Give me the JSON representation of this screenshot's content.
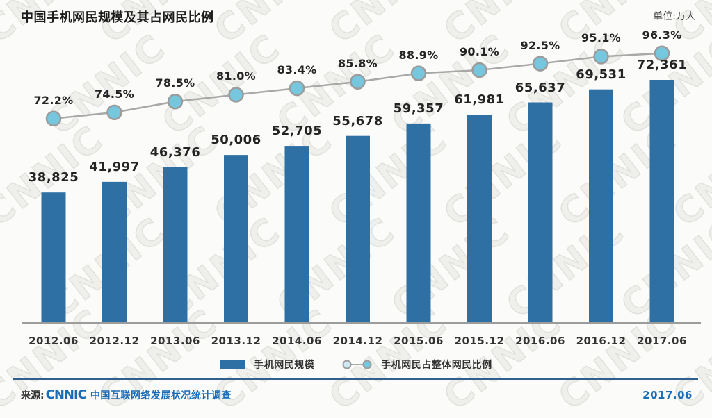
{
  "header": {
    "title": "中国手机网民规模及其占网民比例",
    "unit_label": "单位:万人"
  },
  "watermark": {
    "text": "CNNIC"
  },
  "chart_data": {
    "type": "bar",
    "subtype": "bar-line-combo",
    "title": "中国手机网民规模及其占网民比例",
    "unit": "万人",
    "categories": [
      "2012.06",
      "2012.12",
      "2013.06",
      "2013.12",
      "2014.06",
      "2014.12",
      "2015.06",
      "2015.12",
      "2016.06",
      "2016.12",
      "2017.06"
    ],
    "series": [
      {
        "name": "手机网民规模",
        "type": "bar",
        "unit": "万人",
        "values": [
          38825,
          41997,
          46376,
          50006,
          52705,
          55678,
          59357,
          61981,
          65637,
          69531,
          72361
        ]
      },
      {
        "name": "手机网民占整体网民比例",
        "type": "line",
        "unit": "%",
        "values": [
          72.2,
          74.5,
          78.5,
          81.0,
          83.4,
          85.8,
          88.9,
          90.1,
          92.5,
          95.1,
          96.3
        ]
      }
    ],
    "legend_position": "bottom",
    "grid": false,
    "value_labels_shown": true
  },
  "legend": {
    "bar_label": "手机网民规模",
    "line_label": "手机网民占整体网民比例"
  },
  "footer": {
    "source_prefix": "来源:",
    "logo_text": "CNNIC",
    "source_name": "中国互联网络发展状况统计调查",
    "date": "2017.06"
  },
  "colors": {
    "bar": "#2e6fa4",
    "marker_fill": "#76c7de",
    "marker_fill_light": "#cfe9f2",
    "marker_stroke": "#9b9b9b",
    "line": "#a8a8a8",
    "axis": "#9c9c9c",
    "accent_blue": "#1b6cb5",
    "divider": "#2f618e",
    "text_dark": "#242424"
  }
}
